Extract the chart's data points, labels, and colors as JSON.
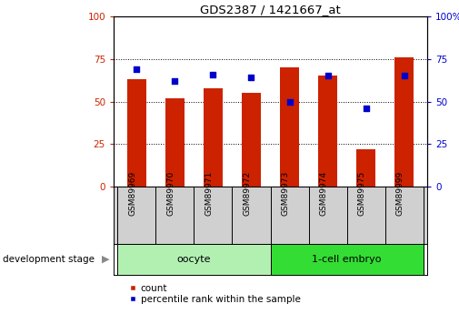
{
  "title": "GDS2387 / 1421667_at",
  "samples": [
    "GSM89969",
    "GSM89970",
    "GSM89971",
    "GSM89972",
    "GSM89973",
    "GSM89974",
    "GSM89975",
    "GSM89999"
  ],
  "counts": [
    63,
    52,
    58,
    55,
    70,
    65,
    22,
    76
  ],
  "percentiles": [
    69,
    62,
    66,
    64,
    50,
    65,
    46,
    65
  ],
  "groups": [
    {
      "label": "oocyte",
      "color": "#b2f0b2",
      "indices": [
        0,
        1,
        2,
        3
      ]
    },
    {
      "label": "1-cell embryo",
      "color": "#33dd33",
      "indices": [
        4,
        5,
        6,
        7
      ]
    }
  ],
  "bar_color": "#cc2200",
  "dot_color": "#0000cc",
  "ylim": [
    0,
    100
  ],
  "yticks": [
    0,
    25,
    50,
    75,
    100
  ],
  "background_color": "#ffffff",
  "tick_label_area_bg": "#d0d0d0",
  "legend_count_label": "count",
  "legend_percentile_label": "percentile rank within the sample",
  "dev_stage_label": "development stage",
  "figsize": [
    5.05,
    3.45
  ],
  "dpi": 100
}
